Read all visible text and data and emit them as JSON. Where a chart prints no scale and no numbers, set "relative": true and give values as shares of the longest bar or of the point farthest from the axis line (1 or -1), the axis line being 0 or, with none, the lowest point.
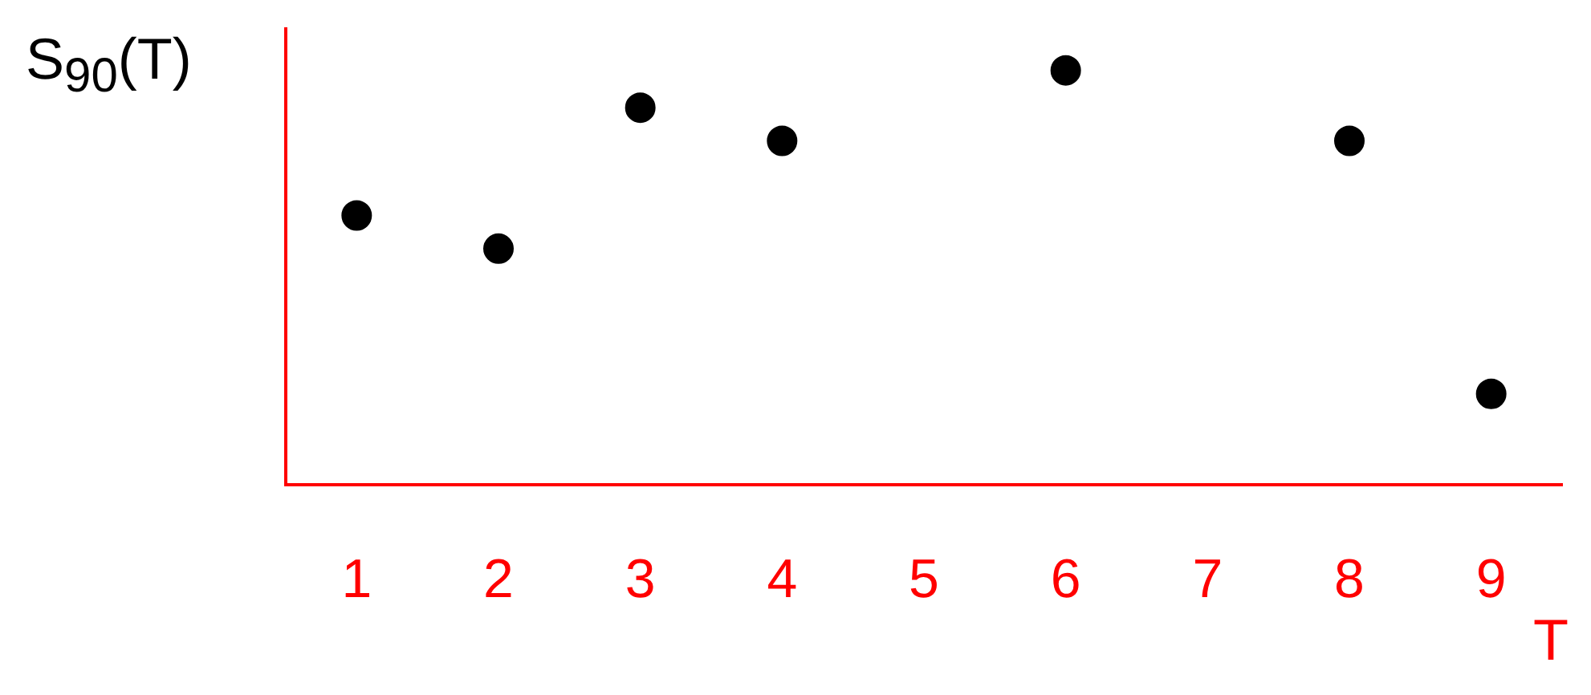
{
  "chart_data": {
    "type": "scatter",
    "ylabel": "S$_{90}$(T)",
    "xlabel": "T",
    "relative": true,
    "categories": [
      "1",
      "2",
      "3",
      "4",
      "5",
      "6",
      "7",
      "8",
      "9"
    ],
    "series": [
      {
        "color": "#000000",
        "values": [
          0.65,
          0.57,
          0.91,
          0.83,
          null,
          1,
          null,
          0.83,
          0.22
        ]
      }
    ],
    "marker": "circle",
    "grid": false,
    "legend": false
  }
}
